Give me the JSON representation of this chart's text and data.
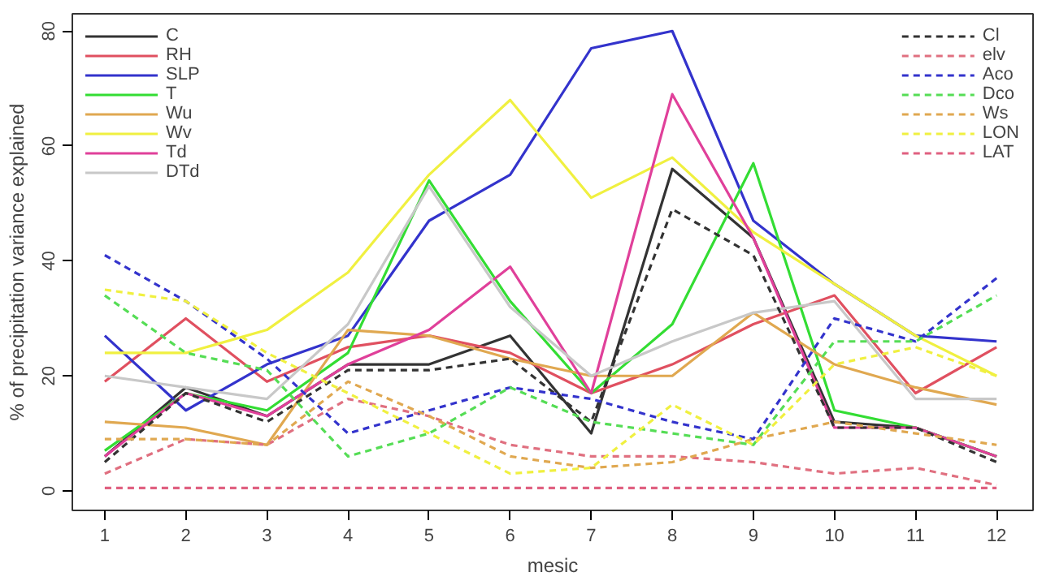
{
  "chart_data": {
    "type": "line",
    "xlabel": "mesic",
    "ylabel": "% of precipitation variance explained",
    "x": [
      1,
      2,
      3,
      4,
      5,
      6,
      7,
      8,
      9,
      10,
      11,
      12
    ],
    "xlim": [
      0.6,
      12.45
    ],
    "ylim": [
      -3.4,
      83
    ],
    "xticks": [
      1,
      2,
      3,
      4,
      5,
      6,
      7,
      8,
      9,
      10,
      11,
      12
    ],
    "yticks": [
      0,
      20,
      40,
      60,
      80
    ],
    "grid": false,
    "legend": "top",
    "marker": "none",
    "series": [
      {
        "name": "C",
        "color": "#333333",
        "line_style": "solid",
        "values": [
          6,
          18,
          13,
          22,
          22,
          27,
          10,
          56,
          44,
          12,
          11,
          6
        ]
      },
      {
        "name": "RH",
        "color": "#e05060",
        "line_style": "solid",
        "values": [
          19,
          30,
          19,
          25,
          27,
          24,
          17,
          22,
          29,
          34,
          17,
          25
        ]
      },
      {
        "name": "SLP",
        "color": "#3333cc",
        "line_style": "solid",
        "values": [
          27,
          14,
          22,
          27,
          47,
          55,
          77,
          80,
          47,
          36,
          27,
          26
        ]
      },
      {
        "name": "T",
        "color": "#33dd33",
        "line_style": "solid",
        "values": [
          7,
          17,
          14,
          24,
          54,
          33,
          17,
          29,
          57,
          14,
          11,
          6
        ]
      },
      {
        "name": "Wu",
        "color": "#e0a850",
        "line_style": "solid",
        "values": [
          12,
          11,
          8,
          28,
          27,
          23,
          20,
          20,
          31,
          22,
          18,
          15
        ]
      },
      {
        "name": "Wv",
        "color": "#f0f040",
        "line_style": "solid",
        "values": [
          24,
          24,
          28,
          38,
          55,
          68,
          51,
          58,
          45,
          36,
          27,
          20
        ]
      },
      {
        "name": "Td",
        "color": "#e0409a",
        "line_style": "solid",
        "values": [
          6,
          17,
          13,
          22,
          28,
          39,
          17,
          69,
          44,
          11,
          11,
          6
        ]
      },
      {
        "name": "DTd",
        "color": "#c8c8c8",
        "line_style": "solid",
        "values": [
          20,
          18,
          16,
          29,
          53,
          32,
          20,
          26,
          31,
          33,
          16,
          16
        ]
      },
      {
        "name": "Cl",
        "color": "#333333",
        "line_style": "dashed",
        "values": [
          5,
          17,
          12,
          21,
          21,
          23,
          12,
          49,
          41,
          11,
          11,
          5
        ]
      },
      {
        "name": "elv",
        "color": "#e07080",
        "line_style": "dashed",
        "values": [
          3,
          9,
          8,
          16,
          13,
          8,
          6,
          6,
          5,
          3,
          4,
          1
        ]
      },
      {
        "name": "Aco",
        "color": "#3333cc",
        "line_style": "dashed",
        "values": [
          41,
          33,
          23,
          10,
          14,
          18,
          16,
          12,
          9,
          30,
          26,
          37
        ]
      },
      {
        "name": "Dco",
        "color": "#55dd55",
        "line_style": "dashed",
        "values": [
          34,
          24,
          21,
          6,
          10,
          18,
          12,
          10,
          8,
          26,
          26,
          34
        ]
      },
      {
        "name": "Ws",
        "color": "#e0a850",
        "line_style": "dashed",
        "values": [
          9,
          9,
          8,
          19,
          13,
          6,
          4,
          5,
          9,
          12,
          10,
          8
        ]
      },
      {
        "name": "LON",
        "color": "#f0f040",
        "line_style": "dashed",
        "values": [
          35,
          33,
          24,
          17,
          10,
          3,
          4,
          15,
          8,
          22,
          25,
          20
        ]
      },
      {
        "name": "LAT",
        "color": "#e06080",
        "line_style": "dashed",
        "values": [
          0.5,
          0.5,
          0.5,
          0.5,
          0.5,
          0.5,
          0.5,
          0.5,
          0.5,
          0.5,
          0.5,
          0.5
        ]
      }
    ]
  }
}
